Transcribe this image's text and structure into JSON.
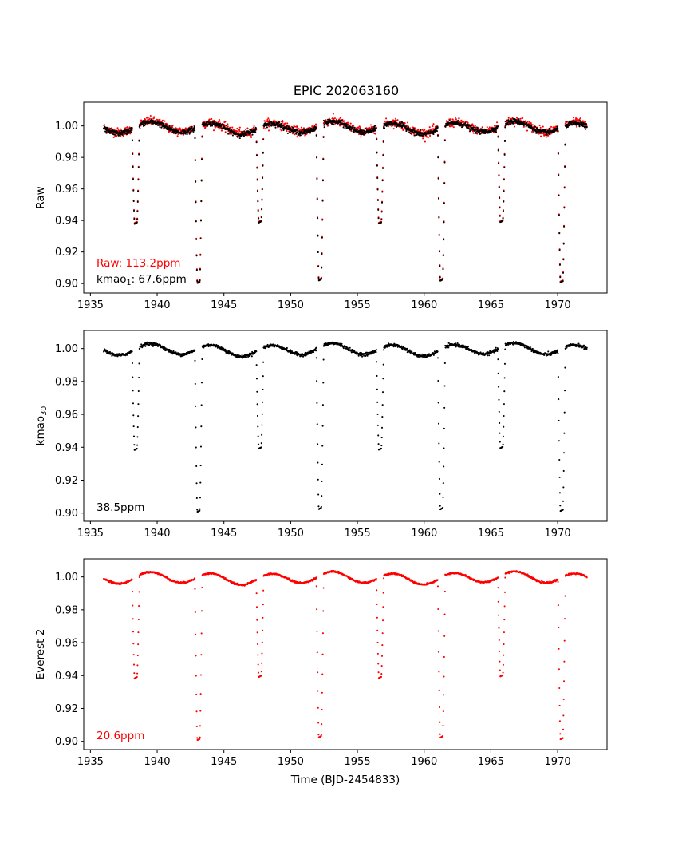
{
  "chart_data": {
    "title": "EPIC 202063160",
    "xlabel": "Time (BJD-2454833)",
    "colors": {
      "raw": "#ff0000",
      "kmao": "#000000",
      "everest": "#ff0000",
      "axes": "#000000"
    },
    "light_curve_model": {
      "t_start": 1936.0,
      "t_end": 1972.2,
      "transit_times": [
        1938.4,
        1943.1,
        1947.7,
        1952.2,
        1956.7,
        1961.3,
        1965.8,
        1970.3
      ],
      "transit_depths": [
        0.061,
        0.099,
        0.06,
        0.098,
        0.061,
        0.097,
        0.061,
        0.098
      ],
      "transit_duration_days": 0.55,
      "cadence_days": 0.0204
    },
    "panels": [
      {
        "type": "scatter",
        "ylabel": "Raw",
        "xlim": [
          1934.5,
          1973.7
        ],
        "ylim": [
          0.894,
          1.015
        ],
        "xticks": [
          1935,
          1940,
          1945,
          1950,
          1955,
          1960,
          1965,
          1970
        ],
        "yticks": [
          "0.90",
          "0.92",
          "0.94",
          "0.96",
          "0.98",
          "1.00"
        ],
        "series": [
          {
            "name": "Raw",
            "color": "#ff0000",
            "scatter_ppm": 113.2,
            "offset": 0.0
          },
          {
            "name": "kmao1",
            "color": "#000000",
            "scatter_ppm": 67.6,
            "offset": -0.0005
          }
        ],
        "annotations": [
          {
            "text": "Raw: 113.2ppm",
            "color": "#ff0000"
          },
          {
            "base": "kmao",
            "sub": "1",
            "rest": ": 67.6ppm",
            "color": "#000000"
          }
        ]
      },
      {
        "type": "scatter",
        "ylabel_base": "kmao",
        "ylabel_sub": "30",
        "xlim": [
          1934.5,
          1973.7
        ],
        "ylim": [
          0.895,
          1.011
        ],
        "xticks": [
          1935,
          1940,
          1945,
          1950,
          1955,
          1960,
          1965,
          1970
        ],
        "yticks": [
          "0.90",
          "0.92",
          "0.94",
          "0.96",
          "0.98",
          "1.00"
        ],
        "series": [
          {
            "name": "kmao30",
            "color": "#000000",
            "scatter_ppm": 38.5,
            "offset": 0.0
          }
        ],
        "annotations": [
          {
            "text": "38.5ppm",
            "color": "#000000"
          }
        ]
      },
      {
        "type": "scatter",
        "ylabel": "Everest 2",
        "xlim": [
          1934.5,
          1973.7
        ],
        "ylim": [
          0.895,
          1.011
        ],
        "xticks": [
          1935,
          1940,
          1945,
          1950,
          1955,
          1960,
          1965,
          1970
        ],
        "yticks": [
          "0.90",
          "0.92",
          "0.94",
          "0.96",
          "0.98",
          "1.00"
        ],
        "series": [
          {
            "name": "Everest 2",
            "color": "#ff0000",
            "scatter_ppm": 20.6,
            "offset": 0.0
          }
        ],
        "annotations": [
          {
            "text": "20.6ppm",
            "color": "#ff0000"
          }
        ]
      }
    ]
  }
}
